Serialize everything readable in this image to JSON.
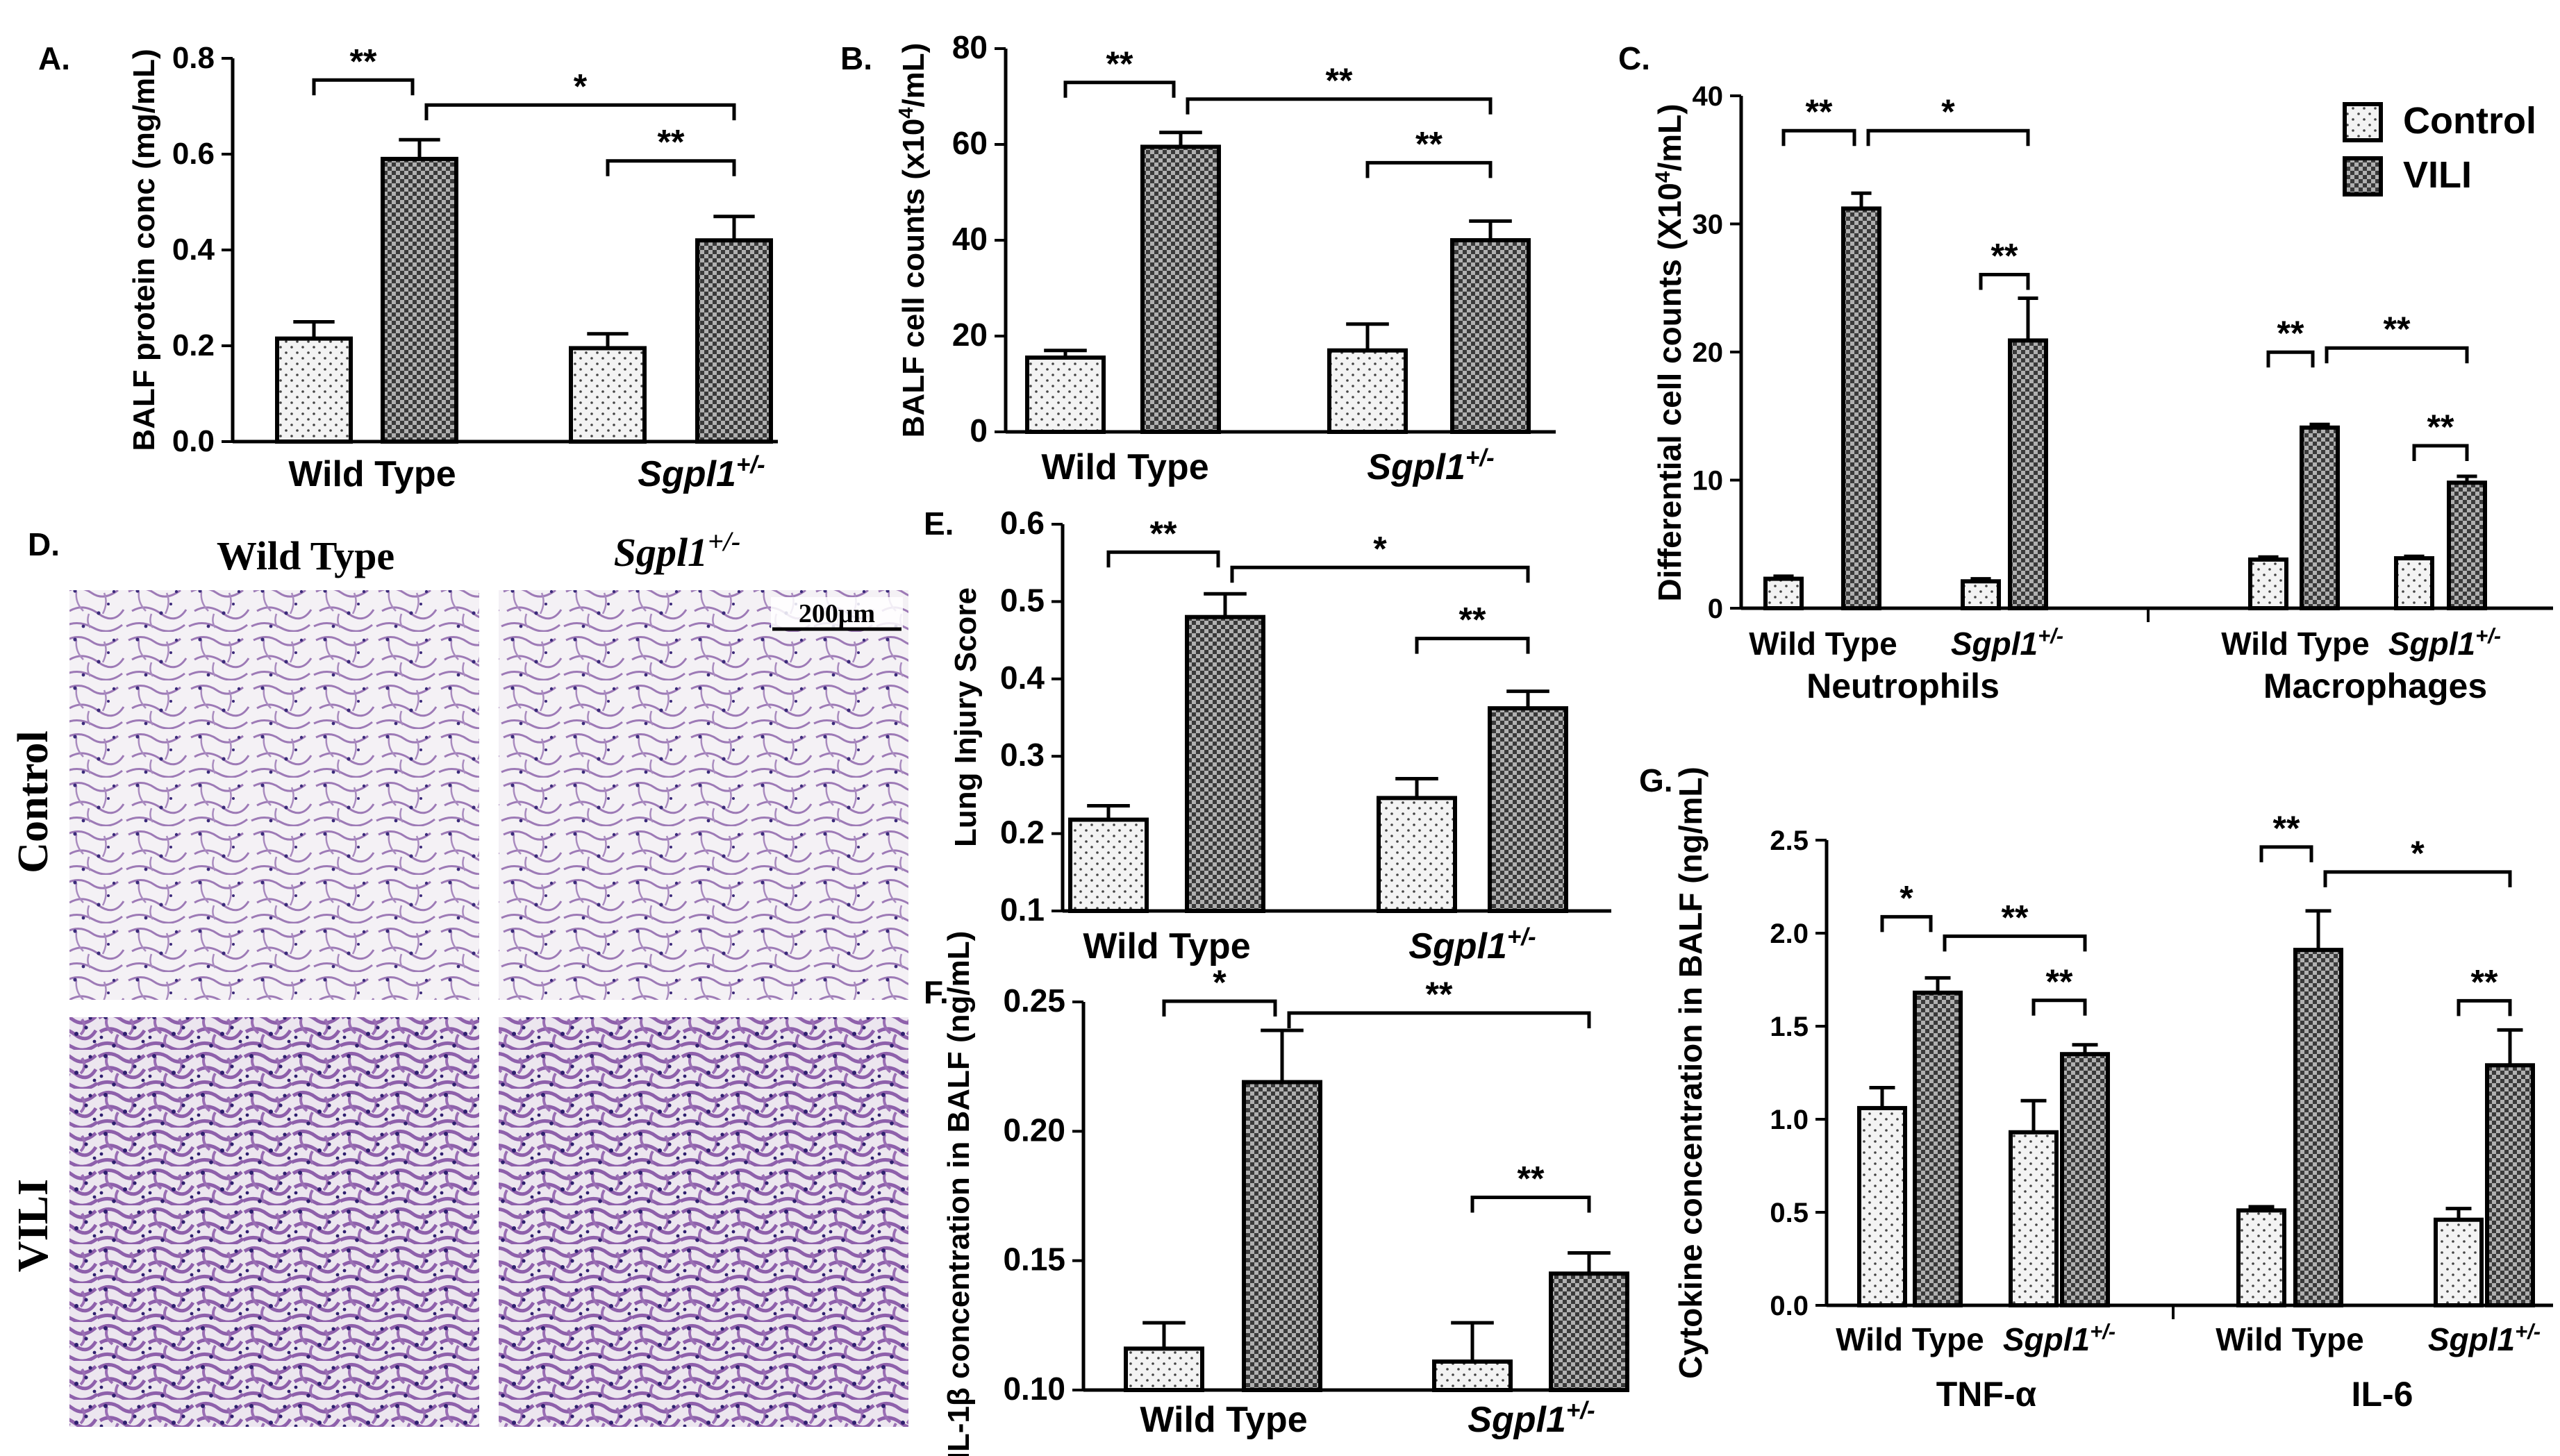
{
  "colors": {
    "control_fill": "#f3f3f3",
    "vili_fill": "#6a6a6a",
    "he_stain": "#8a55a8",
    "background": "#ffffff"
  },
  "legend": {
    "control": "Control",
    "vili": "VILI"
  },
  "panel_d": {
    "label": "D.",
    "col_wild": "Wild Type",
    "col_sgpl": "Sgpl1",
    "col_sgpl_sup": "+/-",
    "row_control": "Control",
    "row_vili": "VILI",
    "scale_bar": "200μm"
  },
  "chart_data": [
    {
      "id": "A",
      "label": "A.",
      "type": "bar",
      "ylabel": "BALF protein conc (mg/mL)",
      "ylim": [
        0,
        0.8
      ],
      "yticks": [
        "0.0",
        "0.2",
        "0.4",
        "0.6",
        "0.8"
      ],
      "categories": [
        "Wild Type",
        "Sgpl1+/-"
      ],
      "series": [
        {
          "name": "Control",
          "values": [
            0.215,
            0.195
          ],
          "errors": [
            0.035,
            0.03
          ]
        },
        {
          "name": "VILI",
          "values": [
            0.59,
            0.42
          ],
          "errors": [
            0.04,
            0.05
          ]
        }
      ],
      "significance": [
        "**",
        "*",
        "**"
      ]
    },
    {
      "id": "B",
      "label": "B.",
      "type": "bar",
      "ylabel": "BALF cell counts (x10^4/mL)",
      "ylim": [
        0,
        80
      ],
      "yticks": [
        "0",
        "20",
        "40",
        "60",
        "80"
      ],
      "categories": [
        "Wild Type",
        "Sgpl1+/-"
      ],
      "series": [
        {
          "name": "Control",
          "values": [
            15.5,
            17
          ],
          "errors": [
            1.5,
            5.5
          ]
        },
        {
          "name": "VILI",
          "values": [
            59.5,
            40
          ],
          "errors": [
            3,
            4
          ]
        }
      ],
      "significance": [
        "**",
        "**",
        "**"
      ]
    },
    {
      "id": "C",
      "label": "C.",
      "type": "bar",
      "ylabel": "Differential cell counts (X10^4/mL)",
      "ylim": [
        0,
        40
      ],
      "yticks": [
        "0",
        "10",
        "20",
        "30",
        "40"
      ],
      "groups": [
        "Neutrophils",
        "Macrophages"
      ],
      "categories": [
        "Wild Type",
        "Sgpl1+/-",
        "Wild Type",
        "Sgpl1+/-"
      ],
      "series": [
        {
          "name": "Control",
          "values": [
            2.3,
            2.1,
            3.8,
            3.9
          ],
          "errors": [
            0.2,
            0.2,
            0.2,
            0.15
          ]
        },
        {
          "name": "VILI",
          "values": [
            31.2,
            20.9,
            14.1,
            9.8
          ],
          "errors": [
            1.2,
            3.3,
            0.25,
            0.5
          ]
        }
      ],
      "significance": [
        "**",
        "*",
        "**",
        "**",
        "**",
        "**"
      ]
    },
    {
      "id": "E",
      "label": "E.",
      "type": "bar",
      "ylabel": "Lung Injury Score",
      "ylim": [
        0.1,
        0.6
      ],
      "yticks": [
        "0.1",
        "0.2",
        "0.3",
        "0.4",
        "0.5",
        "0.6"
      ],
      "categories": [
        "Wild Type",
        "Sgpl1+/-"
      ],
      "series": [
        {
          "name": "Control",
          "values": [
            0.218,
            0.246
          ],
          "errors": [
            0.018,
            0.025
          ]
        },
        {
          "name": "VILI",
          "values": [
            0.48,
            0.362
          ],
          "errors": [
            0.03,
            0.022
          ]
        }
      ],
      "significance": [
        "**",
        "*",
        "**"
      ]
    },
    {
      "id": "F",
      "label": "F.",
      "type": "bar",
      "ylabel": "IL-1β concentration in BALF (ng/mL)",
      "ylim": [
        0.1,
        0.25
      ],
      "yticks": [
        "0.10",
        "0.15",
        "0.20",
        "0.25"
      ],
      "categories": [
        "Wild Type",
        "Sgpl1+/-"
      ],
      "series": [
        {
          "name": "Control",
          "values": [
            0.116,
            0.111
          ],
          "errors": [
            0.01,
            0.015
          ]
        },
        {
          "name": "VILI",
          "values": [
            0.219,
            0.145
          ],
          "errors": [
            0.02,
            0.008
          ]
        }
      ],
      "significance": [
        "*",
        "**",
        "**"
      ]
    },
    {
      "id": "G",
      "label": "G.",
      "type": "bar",
      "ylabel": "Cytokine concentration in BALF (ng/mL)",
      "ylim": [
        0,
        2.5
      ],
      "yticks": [
        "0.0",
        "0.5",
        "1.0",
        "1.5",
        "2.0",
        "2.5"
      ],
      "groups": [
        "TNF-α",
        "IL-6"
      ],
      "categories": [
        "Wild Type",
        "Sgpl1+/-",
        "Wild Type",
        "Sgpl1+/-"
      ],
      "series": [
        {
          "name": "Control",
          "values": [
            1.06,
            0.93,
            0.51,
            0.46
          ],
          "errors": [
            0.11,
            0.17,
            0.02,
            0.06
          ]
        },
        {
          "name": "VILI",
          "values": [
            1.68,
            1.35,
            1.91,
            1.29
          ],
          "errors": [
            0.08,
            0.05,
            0.21,
            0.19
          ]
        }
      ],
      "significance": [
        "*",
        "**",
        "**",
        "**",
        "*",
        "**"
      ]
    }
  ]
}
